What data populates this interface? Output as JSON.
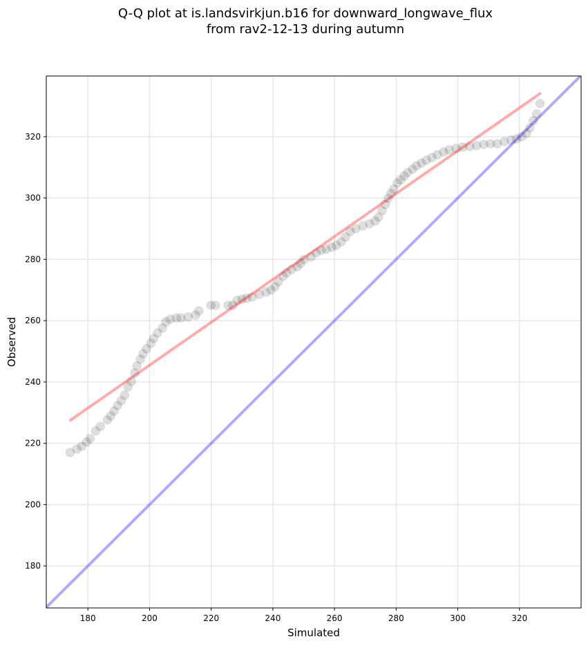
{
  "chart_data": {
    "type": "scatter",
    "title_line1": "Q-Q plot at is.landsvirkjun.b16 for downward_longwave_flux",
    "title_line2": "from rav2-12-13 during autumn",
    "xlabel": "Simulated",
    "ylabel": "Observed",
    "xlim": [
      166.5,
      340
    ],
    "ylim": [
      166.3,
      339.8
    ],
    "xticks": [
      180,
      200,
      220,
      240,
      260,
      280,
      300,
      320
    ],
    "yticks": [
      180,
      200,
      220,
      240,
      260,
      280,
      300,
      320
    ],
    "grid": true,
    "point_color": "#000000",
    "fit_line": {
      "color": "#ff0000",
      "x": [
        174,
        327
      ],
      "y": [
        227.3,
        334.3
      ]
    },
    "identity_line": {
      "color": "#0000ff"
    },
    "points": [
      [
        174.2,
        217.0
      ],
      [
        176.4,
        218.1
      ],
      [
        178,
        219
      ],
      [
        179.6,
        220.4
      ],
      [
        180.7,
        221.5
      ],
      [
        182.5,
        224
      ],
      [
        184,
        225.5
      ],
      [
        186.3,
        227.6
      ],
      [
        187.4,
        228.9
      ],
      [
        188.5,
        230.5
      ],
      [
        189.6,
        232.3
      ],
      [
        190.8,
        233.9
      ],
      [
        191.9,
        235.7
      ],
      [
        193,
        238.4
      ],
      [
        194.1,
        240.2
      ],
      [
        195.2,
        242.9
      ],
      [
        195.9,
        245.2
      ],
      [
        197,
        247.4
      ],
      [
        197.9,
        249.2
      ],
      [
        199,
        250.8
      ],
      [
        200.4,
        252.6
      ],
      [
        201.3,
        254.2
      ],
      [
        202.6,
        256
      ],
      [
        204.2,
        257.6
      ],
      [
        205.3,
        259.6
      ],
      [
        206.7,
        260.5
      ],
      [
        208.7,
        260.9
      ],
      [
        210.2,
        260.9
      ],
      [
        212.5,
        261.2
      ],
      [
        214.9,
        261.8
      ],
      [
        216,
        263.2
      ],
      [
        219.9,
        265
      ],
      [
        221.4,
        265
      ],
      [
        225.5,
        265
      ],
      [
        227,
        265
      ],
      [
        228.4,
        266.6
      ],
      [
        230,
        267
      ],
      [
        231.5,
        267.3
      ],
      [
        233.3,
        267.7
      ],
      [
        235.6,
        268.6
      ],
      [
        237.8,
        269.3
      ],
      [
        239.4,
        270
      ],
      [
        240.7,
        271.1
      ],
      [
        241.8,
        272.7
      ],
      [
        243.4,
        274.5
      ],
      [
        244.5,
        275.6
      ],
      [
        246.1,
        276.7
      ],
      [
        247.9,
        277.6
      ],
      [
        249,
        278.7
      ],
      [
        250.1,
        279.9
      ],
      [
        252.4,
        280.8
      ],
      [
        254.1,
        282.1
      ],
      [
        255.7,
        283
      ],
      [
        257.3,
        283.3
      ],
      [
        259.1,
        283.9
      ],
      [
        260.6,
        284.6
      ],
      [
        262.2,
        285.7
      ],
      [
        263.6,
        287.3
      ],
      [
        265.1,
        289.1
      ],
      [
        266.9,
        290
      ],
      [
        269.2,
        290.9
      ],
      [
        271.4,
        291.6
      ],
      [
        273.2,
        292.5
      ],
      [
        274.3,
        293.8
      ],
      [
        275.4,
        295.9
      ],
      [
        276.5,
        297.9
      ],
      [
        277.4,
        299.9
      ],
      [
        278.3,
        301.5
      ],
      [
        279.2,
        302.9
      ],
      [
        280.4,
        304.9
      ],
      [
        281.5,
        306
      ],
      [
        282.6,
        307.2
      ],
      [
        283.7,
        308.3
      ],
      [
        285.3,
        309.4
      ],
      [
        286.6,
        310.5
      ],
      [
        288.2,
        311.4
      ],
      [
        289.8,
        312.3
      ],
      [
        291.6,
        313.2
      ],
      [
        293.4,
        314.1
      ],
      [
        295.4,
        315
      ],
      [
        297.2,
        315.7
      ],
      [
        299.4,
        316.2
      ],
      [
        301.6,
        316.6
      ],
      [
        303.9,
        316.8
      ],
      [
        306.1,
        317.1
      ],
      [
        308.4,
        317.5
      ],
      [
        310.6,
        317.7
      ],
      [
        312.8,
        317.7
      ],
      [
        315.1,
        318.4
      ],
      [
        317.3,
        318.9
      ],
      [
        319.1,
        319.3
      ],
      [
        320.7,
        320
      ],
      [
        322.3,
        321.1
      ],
      [
        323.4,
        322.9
      ],
      [
        324.5,
        325.2
      ],
      [
        325.6,
        327.4
      ],
      [
        326.7,
        330.8
      ]
    ]
  }
}
